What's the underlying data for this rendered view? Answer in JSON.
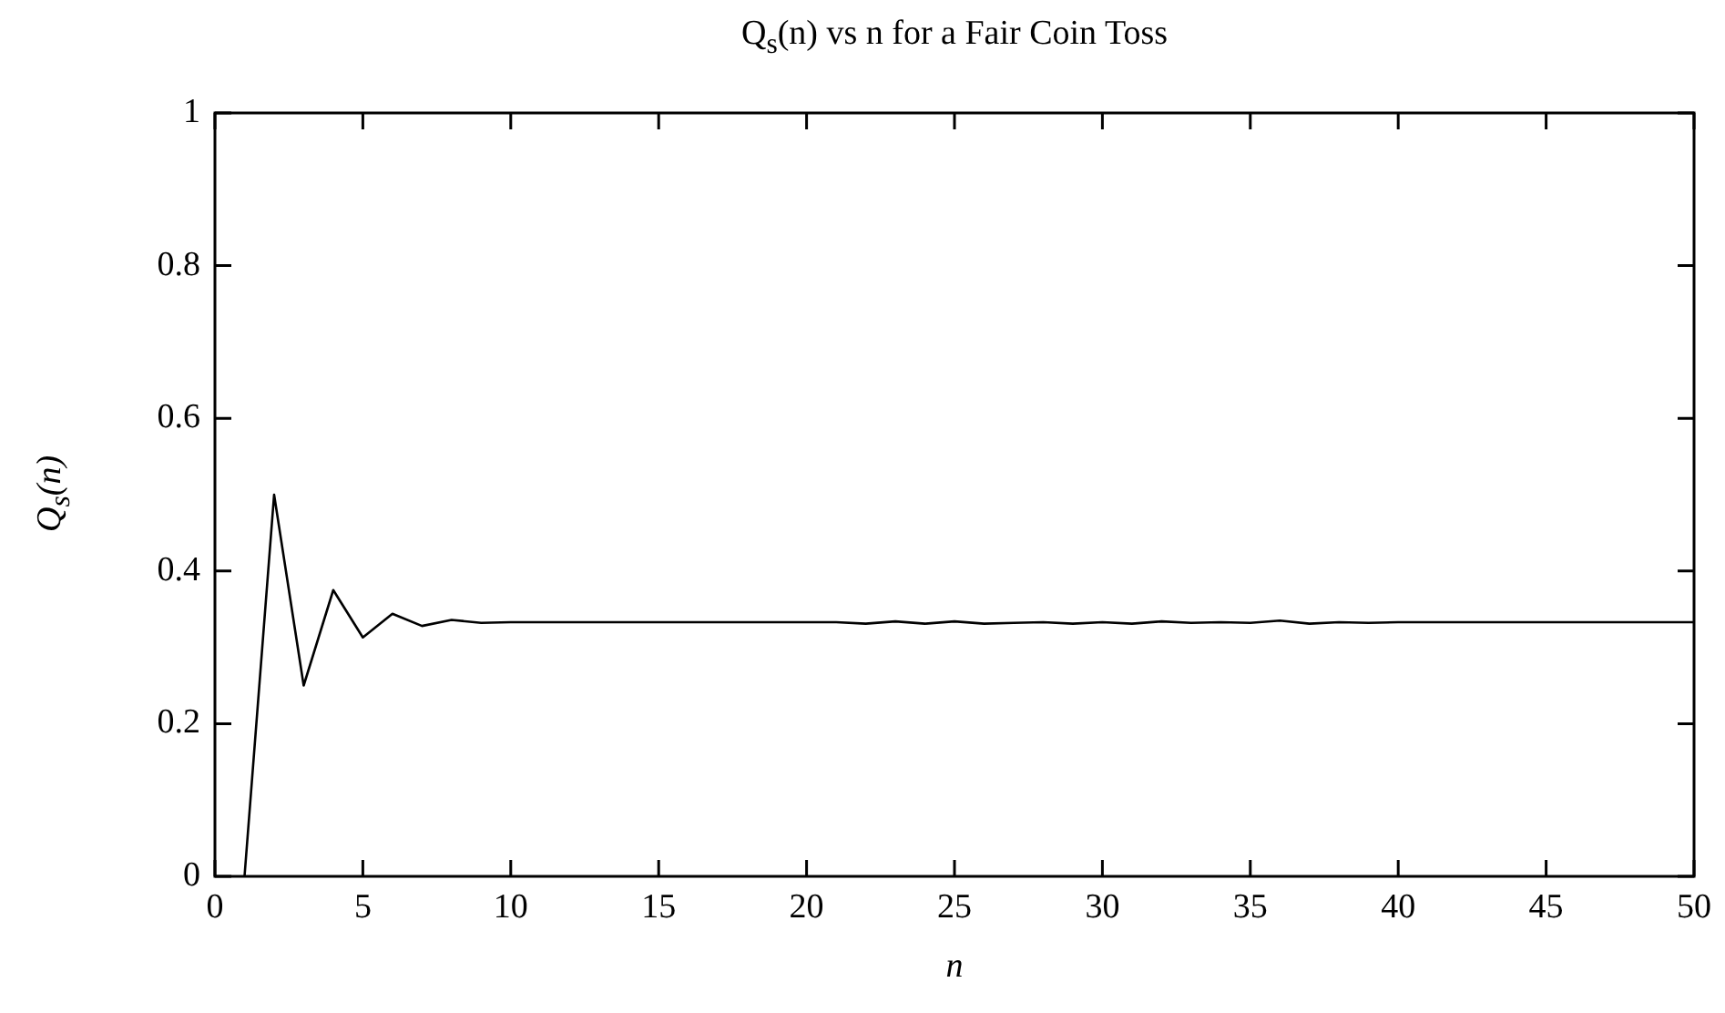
{
  "chart_data": {
    "type": "line",
    "title": "Q$_{s}$(n) vs n for a Fair Coin Toss",
    "xlabel": "n",
    "ylabel": "Q$_{s}$(n)",
    "x": [
      1,
      2,
      3,
      4,
      5,
      6,
      7,
      8,
      9,
      10,
      11,
      12,
      13,
      14,
      15,
      16,
      17,
      18,
      19,
      20,
      21,
      22,
      23,
      24,
      25,
      26,
      27,
      28,
      29,
      30,
      31,
      32,
      33,
      34,
      35,
      36,
      37,
      38,
      39,
      40,
      41,
      42,
      43,
      44,
      45,
      46,
      47,
      48,
      49,
      50
    ],
    "series": [
      {
        "color": "#000000",
        "values": [
          0,
          0.5,
          0.25,
          0.375,
          0.313,
          0.344,
          0.328,
          0.336,
          0.332,
          0.333,
          0.333,
          0.333,
          0.333,
          0.333,
          0.333,
          0.333,
          0.333,
          0.333,
          0.333,
          0.333,
          0.333,
          0.331,
          0.334,
          0.331,
          0.334,
          0.331,
          0.332,
          0.333,
          0.331,
          0.333,
          0.331,
          0.334,
          0.332,
          0.333,
          0.332,
          0.335,
          0.331,
          0.333,
          0.332,
          0.333,
          0.333,
          0.333,
          0.333,
          0.333,
          0.333,
          0.333,
          0.333,
          0.333,
          0.333,
          0.333
        ]
      }
    ],
    "xlim": [
      0,
      50
    ],
    "xticks": [
      0,
      5,
      10,
      15,
      20,
      25,
      30,
      35,
      40,
      45,
      50
    ],
    "ylim": [
      0,
      1
    ],
    "yticks": [
      0,
      0.2,
      0.4,
      0.6,
      0.8,
      1
    ],
    "grid": false,
    "legend": false,
    "marker": "none",
    "line_style": "solid"
  }
}
